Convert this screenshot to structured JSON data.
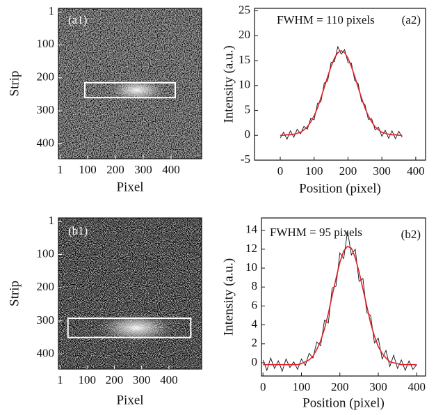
{
  "chart_data": [
    {
      "type": "image",
      "label": "(a1)",
      "xlabel": "Pixel",
      "ylabel": "Strip",
      "xlim": [
        -5,
        510
      ],
      "xticks": [
        1,
        100,
        200,
        300,
        400
      ],
      "ylim": [
        -10,
        445
      ],
      "yticks": [
        1,
        100,
        200,
        300,
        400
      ],
      "y_reversed": true,
      "roi_x": [
        90,
        415
      ],
      "roi_y": [
        215,
        260
      ],
      "roi_color": "#ffffff"
    },
    {
      "type": "line",
      "label": "(a2)",
      "annotation": "FWHM = 110 pixels",
      "xlabel": "Position (pixel)",
      "ylabel": "Intensity (a.u.)",
      "xlim": [
        -76,
        429
      ],
      "xticks": [
        0,
        100,
        200,
        300,
        400
      ],
      "ylim": [
        -5,
        25.5
      ],
      "yticks": [
        -5,
        0,
        5,
        10,
        15,
        20,
        25
      ],
      "x": [
        0,
        10,
        20,
        30,
        40,
        50,
        60,
        70,
        80,
        90,
        100,
        110,
        120,
        130,
        140,
        150,
        160,
        170,
        180,
        190,
        200,
        210,
        220,
        230,
        240,
        250,
        260,
        270,
        280,
        290,
        300,
        310,
        320,
        330,
        340,
        350,
        360
      ],
      "series": [
        {
          "color": "#111111",
          "values": [
            -0.5,
            0.6,
            -0.8,
            0.9,
            -0.4,
            1.2,
            0.3,
            1.8,
            1.2,
            3.4,
            3.1,
            6.4,
            6.7,
            10.5,
            10.9,
            14.6,
            14.8,
            17.8,
            16.3,
            17.2,
            14.6,
            14.5,
            11.0,
            10.4,
            6.8,
            6.2,
            3.2,
            3.3,
            1.1,
            1.6,
            -0.2,
            1.0,
            -0.6,
            0.9,
            -0.7,
            0.8,
            -0.4
          ]
        },
        {
          "color": "#e0202a",
          "values": [
            0,
            0,
            0.1,
            0.1,
            0.2,
            0.4,
            0.6,
            1.1,
            1.7,
            2.7,
            3.9,
            5.5,
            7.5,
            9.6,
            11.8,
            13.8,
            15.5,
            16.6,
            17,
            16.6,
            15.5,
            13.8,
            11.8,
            9.6,
            7.5,
            5.5,
            3.9,
            2.7,
            1.7,
            1.1,
            0.6,
            0.4,
            0.2,
            0.1,
            0.1,
            0,
            0
          ]
        }
      ]
    },
    {
      "type": "image",
      "label": "(b1)",
      "xlabel": "Pixel",
      "ylabel": "Strip",
      "xlim": [
        -5,
        520
      ],
      "xticks": [
        1,
        100,
        200,
        300,
        400
      ],
      "ylim": [
        -10,
        445
      ],
      "yticks": [
        1,
        100,
        200,
        300,
        400
      ],
      "y_reversed": true,
      "roi_x": [
        30,
        480
      ],
      "roi_y": [
        292,
        350
      ],
      "roi_color": "#ffffff"
    },
    {
      "type": "line",
      "label": "(b2)",
      "annotation": "FWHM = 95 pixels",
      "xlabel": "Position (pixel)",
      "ylabel": "Intensity (a.u.)",
      "xlim": [
        -4,
        423
      ],
      "xticks": [
        0,
        100,
        200,
        300,
        400
      ],
      "ylim": [
        -1.4,
        15.3
      ],
      "yticks": [
        0,
        2,
        4,
        6,
        8,
        10,
        12,
        14
      ],
      "x": [
        0,
        10,
        20,
        30,
        40,
        50,
        60,
        70,
        80,
        90,
        100,
        110,
        120,
        130,
        140,
        150,
        160,
        170,
        180,
        190,
        200,
        210,
        220,
        230,
        240,
        250,
        260,
        270,
        280,
        290,
        300,
        310,
        320,
        330,
        340,
        350,
        360,
        370,
        380,
        390,
        400
      ],
      "series": [
        {
          "color": "#111111",
          "values": [
            0.3,
            -0.8,
            0.5,
            -0.6,
            0.2,
            -0.9,
            0.4,
            -0.5,
            0.1,
            -0.7,
            0.4,
            -0.3,
            1.0,
            0.5,
            2.2,
            1.8,
            4.5,
            4.2,
            7.9,
            8.1,
            11.6,
            11.0,
            13.9,
            11.4,
            12.0,
            8.6,
            8.9,
            5.3,
            5.0,
            2.1,
            2.6,
            0.4,
            1.3,
            -0.4,
            0.8,
            -0.6,
            0.3,
            -0.8,
            0.2,
            -0.7,
            -0.2
          ]
        },
        {
          "color": "#e0202a",
          "values": [
            -0.2,
            -0.2,
            -0.2,
            -0.2,
            -0.2,
            -0.2,
            -0.2,
            -0.2,
            -0.2,
            -0.2,
            -0.1,
            0.1,
            0.3,
            0.7,
            1.4,
            2.3,
            3.6,
            5.2,
            7.1,
            8.9,
            10.6,
            11.8,
            12.3,
            12.1,
            11.1,
            9.6,
            7.8,
            6.0,
            4.2,
            2.8,
            1.7,
            1.0,
            0.5,
            0.1,
            0,
            -0.1,
            -0.2,
            -0.2,
            -0.2,
            -0.2,
            -0.2
          ]
        }
      ]
    }
  ]
}
